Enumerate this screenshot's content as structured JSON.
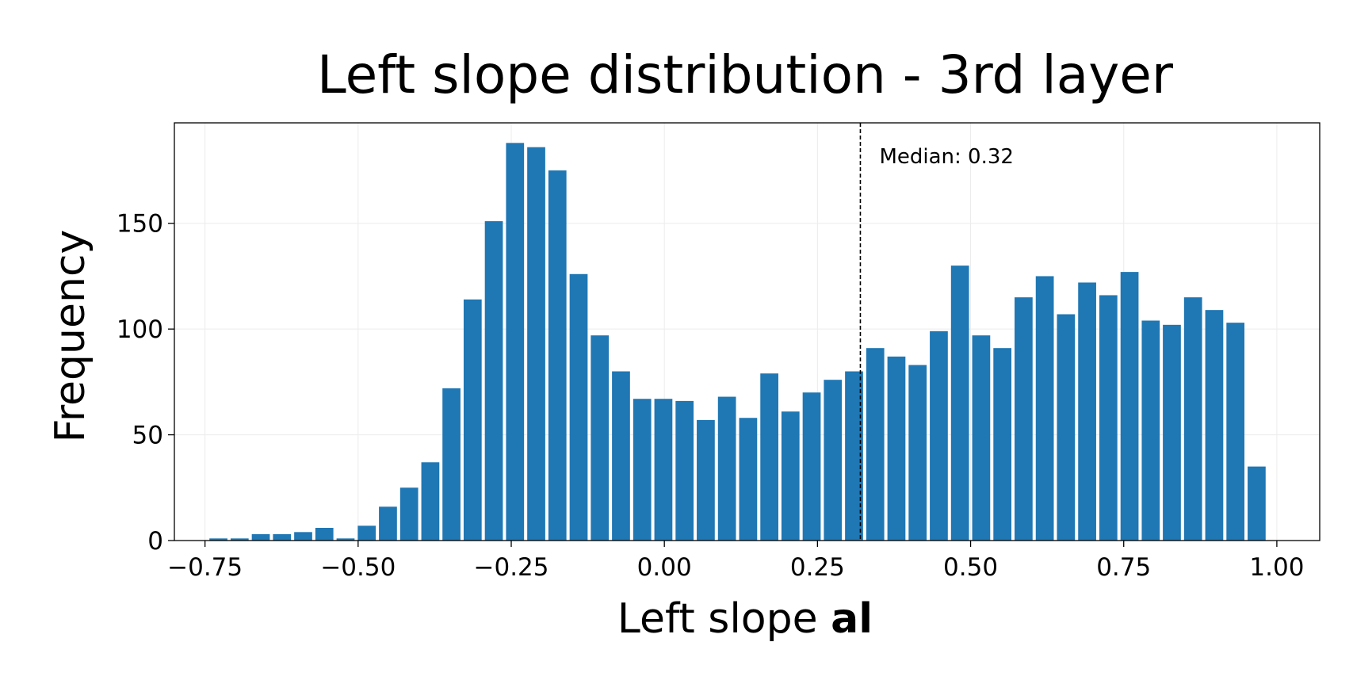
{
  "chart_data": {
    "type": "bar",
    "title": "Left slope distribution - 3rd layer",
    "xlabel_prefix": "Left slope ",
    "xlabel_bold": "al",
    "ylabel": "Frequency",
    "bin_width": 0.03459,
    "x": [
      -0.7281,
      -0.6935,
      -0.6589,
      -0.6243,
      -0.5897,
      -0.5551,
      -0.5205,
      -0.4859,
      -0.4513,
      -0.4167,
      -0.3821,
      -0.3476,
      -0.313,
      -0.2784,
      -0.2438,
      -0.2092,
      -0.1746,
      -0.14,
      -0.1054,
      -0.0708,
      -0.0362,
      -0.0016,
      0.033,
      0.0676,
      0.1022,
      0.1368,
      0.1714,
      0.2059,
      0.2405,
      0.2751,
      0.3097,
      0.3443,
      0.3789,
      0.4135,
      0.4481,
      0.4827,
      0.5173,
      0.5519,
      0.5865,
      0.6211,
      0.6557,
      0.6903,
      0.7249,
      0.7595,
      0.7941,
      0.8286,
      0.8632,
      0.8978,
      0.9324,
      0.967
    ],
    "values": [
      1,
      1,
      3,
      3,
      4,
      6,
      1,
      7,
      16,
      25,
      37,
      72,
      114,
      151,
      188,
      186,
      175,
      126,
      97,
      80,
      67,
      67,
      66,
      57,
      68,
      58,
      79,
      61,
      70,
      76,
      80,
      91,
      87,
      83,
      99,
      130,
      97,
      91,
      115,
      125,
      107,
      122,
      116,
      127,
      104,
      102,
      115,
      109,
      103,
      35
    ],
    "xlim": [
      -0.8,
      1.07
    ],
    "ylim": [
      0,
      197.5
    ],
    "xticks": [
      -0.75,
      -0.5,
      -0.25,
      0.0,
      0.25,
      0.5,
      0.75,
      1.0
    ],
    "xtick_labels": [
      "−0.75",
      "−0.50",
      "−0.25",
      "0.00",
      "0.25",
      "0.50",
      "0.75",
      "1.00"
    ],
    "yticks": [
      0,
      50,
      100,
      150
    ],
    "ytick_labels": [
      "0",
      "50",
      "100",
      "150"
    ],
    "grid": true,
    "legend": "none",
    "bar_color": "#1f77b4",
    "median": {
      "value": 0.32,
      "label": "Median: 0.32"
    }
  }
}
